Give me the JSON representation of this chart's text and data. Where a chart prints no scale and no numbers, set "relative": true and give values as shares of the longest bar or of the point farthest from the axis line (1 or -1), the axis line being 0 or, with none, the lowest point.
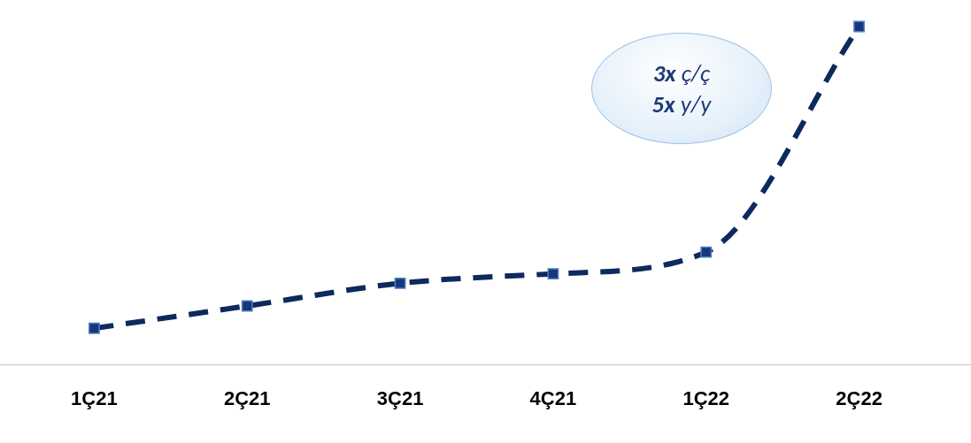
{
  "chart_data": {
    "type": "line",
    "relative": true,
    "categories": [
      "1Ç21",
      "2Ç21",
      "3Ç21",
      "4Ç21",
      "1Ç22",
      "2Ç22"
    ],
    "series": [
      {
        "color": "#0d2a5c",
        "values": [
          0.108,
          0.174,
          0.241,
          0.269,
          0.333,
          1
        ]
      }
    ],
    "marker": "square",
    "line_style": "dashed",
    "grid": false,
    "legend": false,
    "annotations": [
      "3x ç/ç",
      "5x y/y"
    ]
  }
}
